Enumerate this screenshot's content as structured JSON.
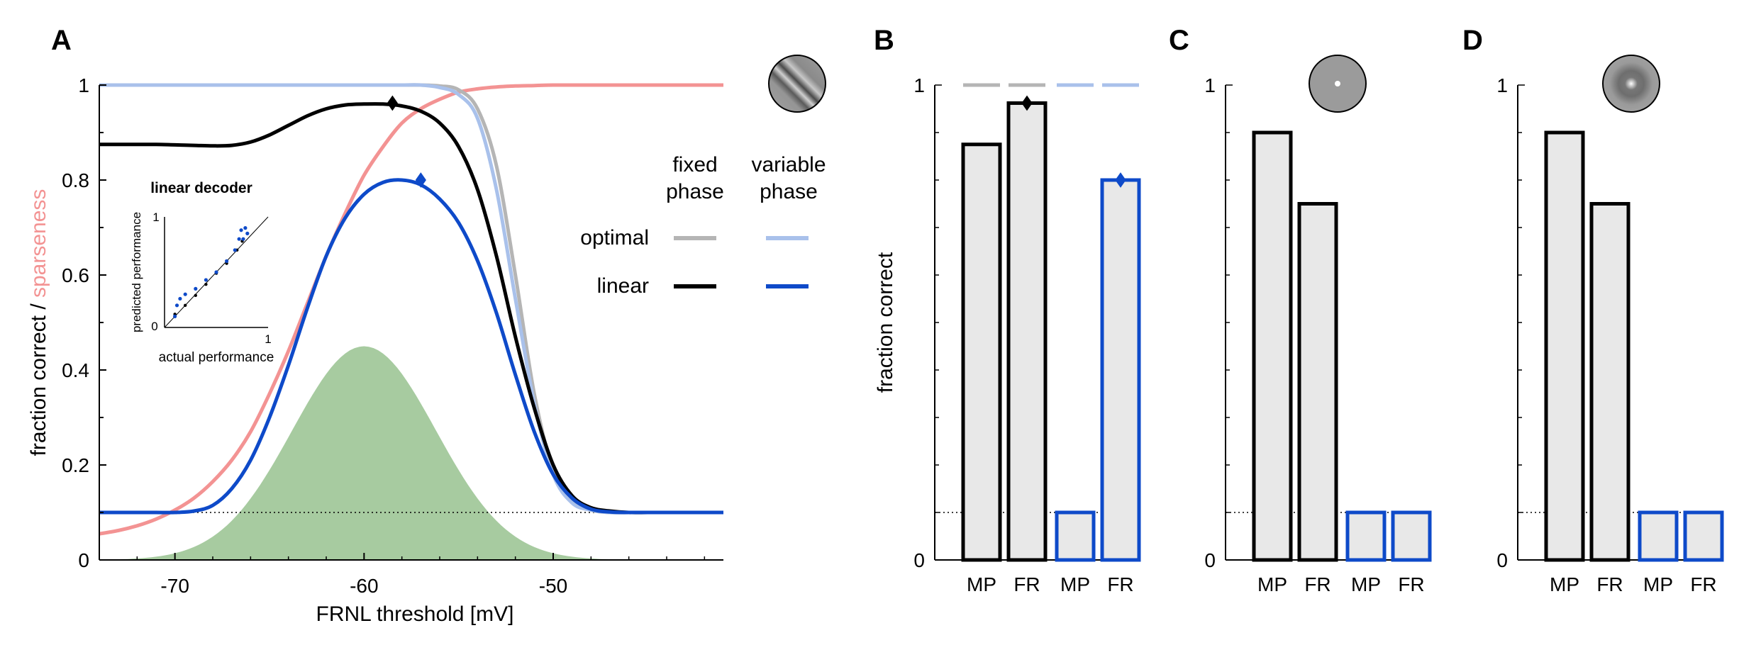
{
  "panel_letters": {
    "a": "A",
    "b": "B",
    "c": "C",
    "d": "D"
  },
  "colors": {
    "optimal_fixed": "#b5b5b5",
    "optimal_variable": "#a9c1eb",
    "linear_fixed": "#000000",
    "linear_variable": "#0e4ac9",
    "sparseness": "#f39393",
    "distribution": "#a7cba0",
    "bar_fill": "#e8e8e8"
  },
  "legend": {
    "col_fixed": [
      "fixed",
      "phase"
    ],
    "col_variable": [
      "variable",
      "phase"
    ],
    "row_optimal": "optimal",
    "row_linear": "linear"
  },
  "inset": {
    "title": "linear decoder",
    "xlabel": "actual performance",
    "ylabel": "predicted performance",
    "ticks": [
      "0",
      "1",
      "1"
    ]
  },
  "chart_data": [
    {
      "panel": "A",
      "type": "line",
      "xlabel": "FRNL threshold [mV]",
      "ylabel_parts": [
        "fraction correct / ",
        "sparseness"
      ],
      "xlim": [
        -74,
        -41
      ],
      "ylim": [
        0,
        1
      ],
      "xticks": [
        -70,
        -60,
        -50
      ],
      "xtick_labels": [
        "-70",
        "-60",
        "-50"
      ],
      "yticks": [
        0,
        0.2,
        0.4,
        0.6,
        0.8,
        1
      ],
      "ytick_labels": [
        "0",
        "0.2",
        "0.4",
        "0.6",
        "0.8",
        "1"
      ],
      "chance_level": 0.1,
      "x": [
        -74,
        -73,
        -72,
        -71,
        -70,
        -69,
        -68,
        -67,
        -66,
        -65,
        -64,
        -63,
        -62,
        -61,
        -60,
        -59,
        -58,
        -57,
        -56,
        -55,
        -54,
        -53,
        -52,
        -51,
        -50,
        -49,
        -48,
        -47,
        -46,
        -45,
        -44,
        -43,
        -42,
        -41
      ],
      "series": [
        {
          "key": "optimal_fixed",
          "values": [
            1,
            1,
            1,
            1,
            1,
            1,
            1,
            1,
            1,
            1,
            1,
            1,
            1,
            1,
            1,
            1,
            1,
            1,
            0.998,
            0.99,
            0.95,
            0.83,
            0.6,
            0.35,
            0.19,
            0.125,
            0.105,
            0.1,
            0.1,
            0.1,
            0.1,
            0.1,
            0.1,
            0.1
          ]
        },
        {
          "key": "optimal_variable",
          "values": [
            1,
            1,
            1,
            1,
            1,
            1,
            1,
            1,
            1,
            1,
            1,
            1,
            1,
            1,
            1,
            1,
            1,
            1,
            0.995,
            0.98,
            0.93,
            0.78,
            0.55,
            0.33,
            0.18,
            0.12,
            0.105,
            0.1,
            0.1,
            0.1,
            0.1,
            0.1,
            0.1,
            0.1
          ]
        },
        {
          "key": "linear_fixed",
          "values": [
            0.875,
            0.875,
            0.875,
            0.875,
            0.874,
            0.873,
            0.872,
            0.873,
            0.88,
            0.895,
            0.915,
            0.935,
            0.95,
            0.958,
            0.96,
            0.96,
            0.956,
            0.945,
            0.92,
            0.87,
            0.78,
            0.64,
            0.47,
            0.32,
            0.2,
            0.135,
            0.11,
            0.103,
            0.1,
            0.1,
            0.1,
            0.1,
            0.1,
            0.1
          ]
        },
        {
          "key": "linear_variable",
          "values": [
            0.1,
            0.1,
            0.1,
            0.1,
            0.1,
            0.103,
            0.115,
            0.15,
            0.21,
            0.3,
            0.41,
            0.53,
            0.64,
            0.72,
            0.77,
            0.795,
            0.8,
            0.79,
            0.76,
            0.71,
            0.63,
            0.52,
            0.39,
            0.27,
            0.18,
            0.13,
            0.107,
            0.101,
            0.1,
            0.1,
            0.1,
            0.1,
            0.1,
            0.1
          ]
        },
        {
          "key": "sparseness",
          "values": [
            0.055,
            0.062,
            0.072,
            0.086,
            0.105,
            0.13,
            0.165,
            0.21,
            0.27,
            0.35,
            0.44,
            0.54,
            0.64,
            0.73,
            0.81,
            0.87,
            0.92,
            0.95,
            0.97,
            0.985,
            0.992,
            0.996,
            0.998,
            0.999,
            1,
            1,
            1,
            1,
            1,
            1,
            1,
            1,
            1,
            1
          ]
        }
      ],
      "distribution": {
        "key": "distribution",
        "peak_x": -60,
        "peak_y": 0.45,
        "sd": 3.8
      },
      "peak_markers": [
        {
          "series": "linear_fixed",
          "x": -58.5,
          "y": 0.962
        },
        {
          "series": "linear_variable",
          "x": -57,
          "y": 0.8
        }
      ],
      "inset_points_fixed": [
        [
          0.1,
          0.12
        ],
        [
          0.2,
          0.2
        ],
        [
          0.3,
          0.29
        ],
        [
          0.4,
          0.39
        ],
        [
          0.5,
          0.49
        ],
        [
          0.6,
          0.58
        ],
        [
          0.7,
          0.7
        ],
        [
          0.75,
          0.78
        ]
      ],
      "inset_points_variable": [
        [
          0.1,
          0.1
        ],
        [
          0.12,
          0.2
        ],
        [
          0.15,
          0.26
        ],
        [
          0.2,
          0.3
        ],
        [
          0.3,
          0.35
        ],
        [
          0.4,
          0.43
        ],
        [
          0.5,
          0.5
        ],
        [
          0.6,
          0.6
        ],
        [
          0.68,
          0.7
        ],
        [
          0.72,
          0.8
        ],
        [
          0.74,
          0.88
        ],
        [
          0.78,
          0.9
        ],
        [
          0.8,
          0.85
        ],
        [
          0.76,
          0.8
        ]
      ]
    },
    {
      "panel": "B",
      "type": "bar",
      "ylabel": "fraction correct",
      "ylim": [
        0,
        1
      ],
      "ytick_labels": [
        "0",
        "1"
      ],
      "chance_level": 0.1,
      "categories": [
        "MP",
        "FR",
        "MP",
        "FR"
      ],
      "values": [
        0.875,
        0.962,
        0.1,
        0.8
      ],
      "series_of_bar": [
        "fixed",
        "fixed",
        "variable",
        "variable"
      ],
      "optimal": [
        1,
        1,
        1,
        1
      ],
      "peak_markers": [
        1,
        3
      ]
    },
    {
      "panel": "C",
      "type": "bar",
      "ylim": [
        0,
        1
      ],
      "ytick_labels": [
        "0",
        "1"
      ],
      "chance_level": 0.1,
      "categories": [
        "MP",
        "FR",
        "MP",
        "FR"
      ],
      "values": [
        0.9,
        0.75,
        0.1,
        0.1
      ],
      "series_of_bar": [
        "fixed",
        "fixed",
        "variable",
        "variable"
      ]
    },
    {
      "panel": "D",
      "type": "bar",
      "ylim": [
        0,
        1
      ],
      "ytick_labels": [
        "0",
        "1"
      ],
      "chance_level": 0.1,
      "categories": [
        "MP",
        "FR",
        "MP",
        "FR"
      ],
      "values": [
        0.9,
        0.75,
        0.1,
        0.1
      ],
      "series_of_bar": [
        "fixed",
        "fixed",
        "variable",
        "variable"
      ]
    }
  ]
}
